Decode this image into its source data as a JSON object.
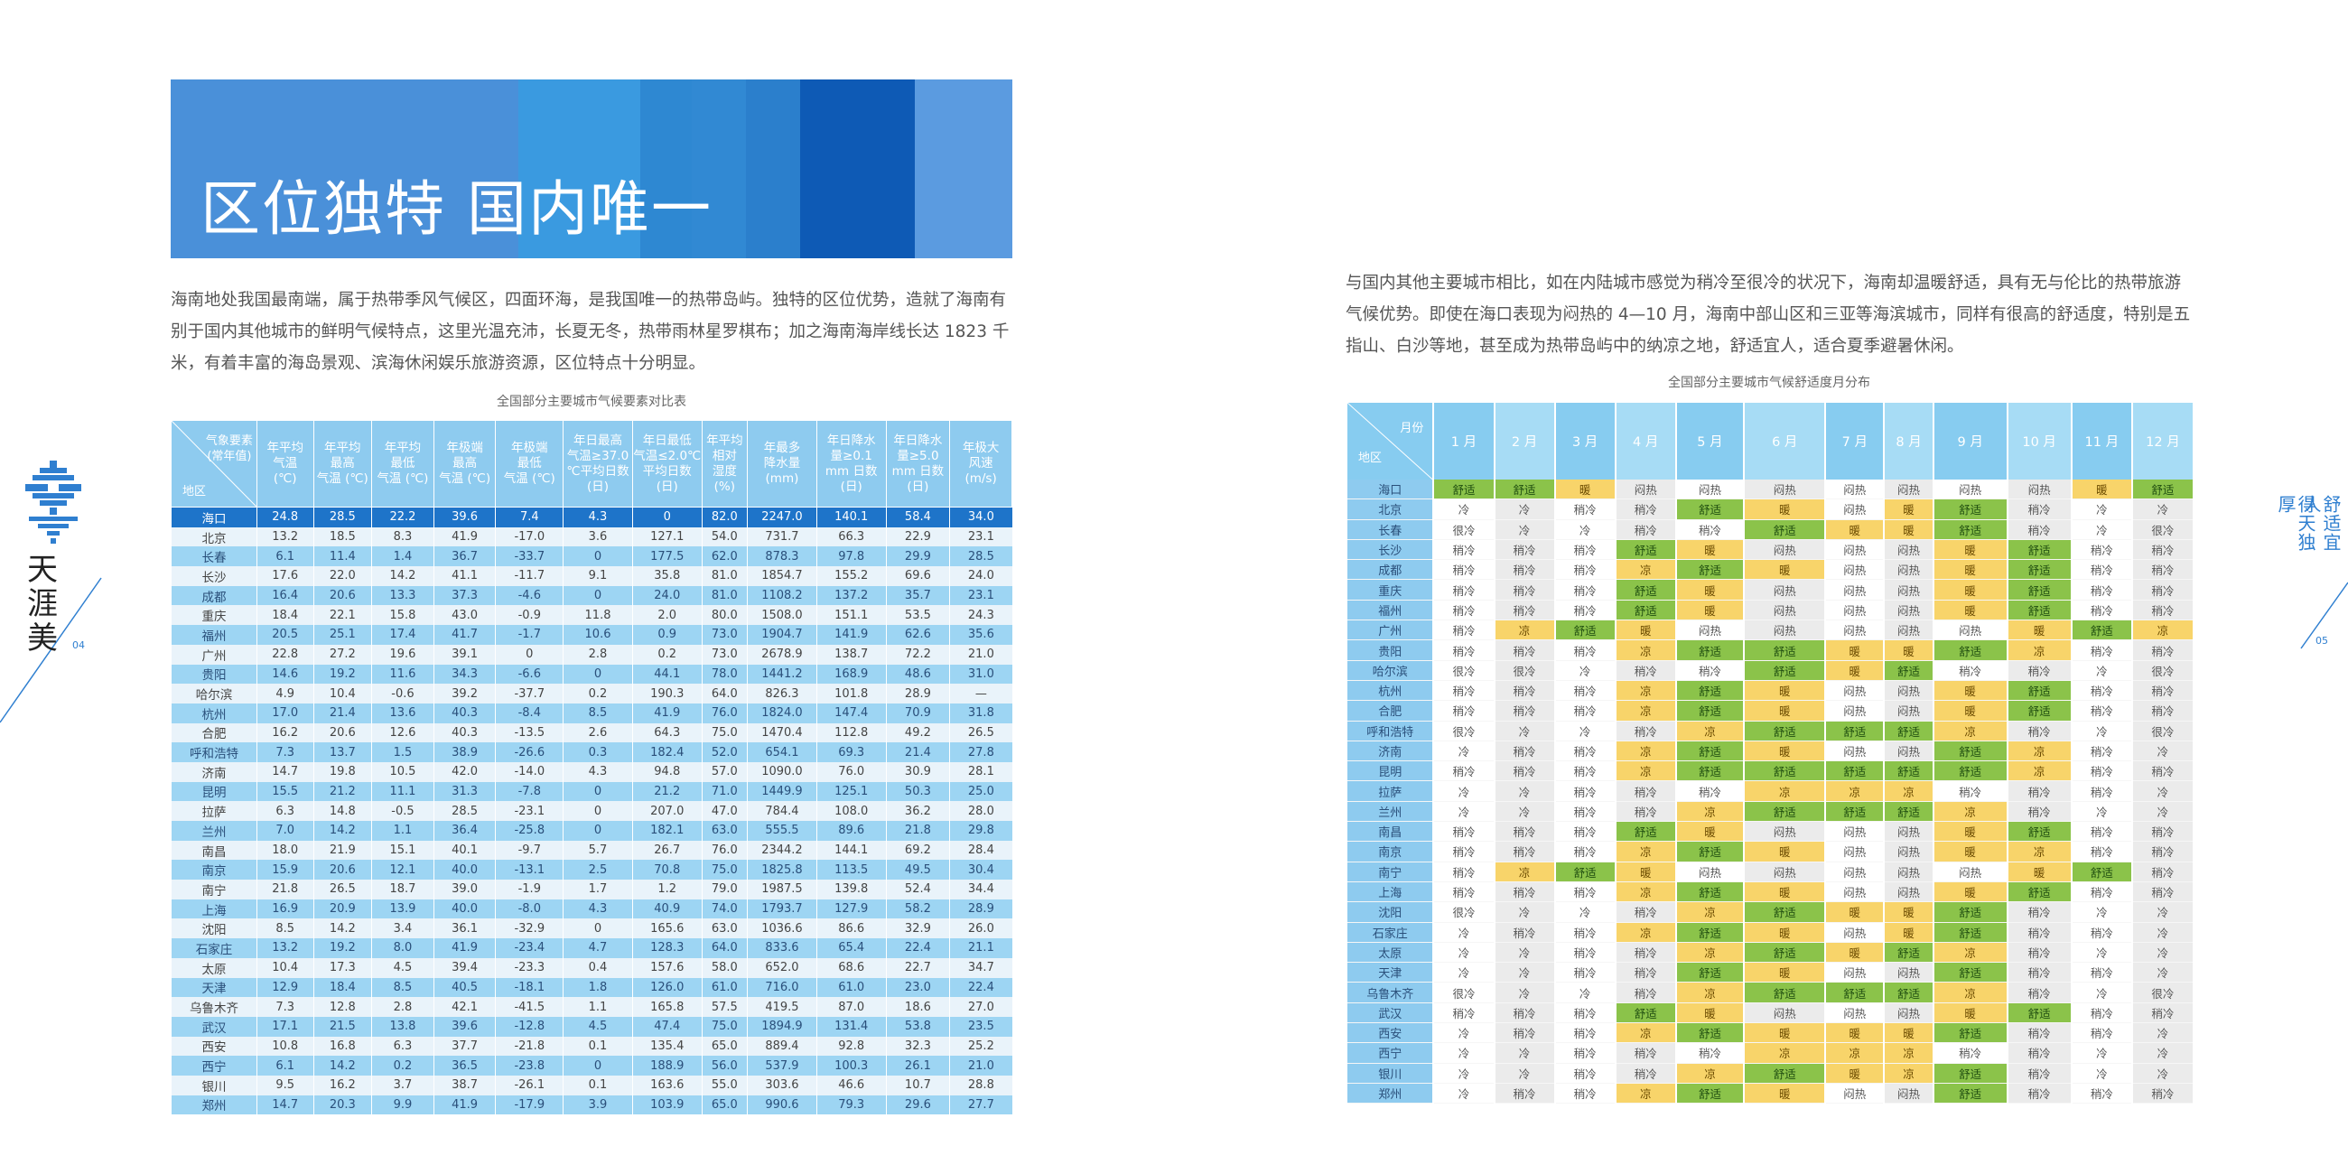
{
  "banner": {
    "title": "区位独特  国内唯一",
    "colors": [
      "#4a90d9",
      "#3f8ad6",
      "#3a9ae0",
      "#2e88d2",
      "#2b7fcc",
      "#0e5ab5",
      "#5b9be0"
    ]
  },
  "left_paragraph": "海南地处我国最南端，属于热带季风气候区，四面环海，是我国唯一的热带岛屿。独特的区位优势，造就了海南有别于国内其他城市的鲜明气候特点，这里光温充沛，长夏无冬，热带雨林星罗棋布；加之海南海岸线长达 1823 千米，有着丰富的海岛景观、滨海休闲娱乐旅游资源，区位特点十分明显。",
  "right_paragraph": "与国内其他主要城市相比，如在内陆城市感觉为稍冷至很冷的状况下，海南却温暖舒适，具有无与伦比的热带旅游气候优势。即使在海口表现为闷热的 4—10 月，海南中部山区和三亚等海滨城市，同样有很高的舒适度，特别是五指山、白沙等地，甚至成为热带岛屿中的纳凉之地，舒适宜人，适合夏季避暑休闲。",
  "table1": {
    "caption": "全国部分主要城市气候要素对比表",
    "corner_top": "气象要素\n(常年值)",
    "corner_bottom": "地区",
    "headers": [
      "年平均\n气温\n(℃)",
      "年平均\n最高\n气温 (℃)",
      "年平均\n最低\n气温 (℃)",
      "年极端\n最高\n气温 (℃)",
      "年极端\n最低\n气温 (℃)",
      "年日最高\n气温≥37.0\n℃平均日数\n(日)",
      "年日最低\n气温≤2.0℃\n平均日数\n(日)",
      "年平均\n相对\n湿度\n(%)",
      "年最多\n降水量\n(mm)",
      "年日降水\n量≥0.1\nmm 日数\n(日)",
      "年日降水\n量≥5.0\nmm 日数\n(日)",
      "年极大\n风速\n(m/s)"
    ],
    "rows": [
      [
        "海口",
        "24.8",
        "28.5",
        "22.2",
        "39.6",
        "7.4",
        "4.3",
        "0",
        "82.0",
        "2247.0",
        "140.1",
        "58.4",
        "34.0"
      ],
      [
        "北京",
        "13.2",
        "18.5",
        "8.3",
        "41.9",
        "-17.0",
        "3.6",
        "127.1",
        "54.0",
        "731.7",
        "66.3",
        "22.9",
        "23.1"
      ],
      [
        "长春",
        "6.1",
        "11.4",
        "1.4",
        "36.7",
        "-33.7",
        "0",
        "177.5",
        "62.0",
        "878.3",
        "97.8",
        "29.9",
        "28.5"
      ],
      [
        "长沙",
        "17.6",
        "22.0",
        "14.2",
        "41.1",
        "-11.7",
        "9.1",
        "35.8",
        "81.0",
        "1854.7",
        "155.2",
        "69.6",
        "24.0"
      ],
      [
        "成都",
        "16.4",
        "20.6",
        "13.3",
        "37.3",
        "-4.6",
        "0",
        "24.0",
        "81.0",
        "1108.2",
        "137.2",
        "35.7",
        "23.1"
      ],
      [
        "重庆",
        "18.4",
        "22.1",
        "15.8",
        "43.0",
        "-0.9",
        "11.8",
        "2.0",
        "80.0",
        "1508.0",
        "151.1",
        "53.5",
        "24.3"
      ],
      [
        "福州",
        "20.5",
        "25.1",
        "17.4",
        "41.7",
        "-1.7",
        "10.6",
        "0.9",
        "73.0",
        "1904.7",
        "141.9",
        "62.6",
        "35.6"
      ],
      [
        "广州",
        "22.8",
        "27.2",
        "19.6",
        "39.1",
        "0",
        "2.8",
        "0.2",
        "73.0",
        "2678.9",
        "138.7",
        "72.2",
        "21.0"
      ],
      [
        "贵阳",
        "14.6",
        "19.2",
        "11.6",
        "34.3",
        "-6.6",
        "0",
        "44.1",
        "78.0",
        "1441.2",
        "168.9",
        "48.6",
        "31.0"
      ],
      [
        "哈尔滨",
        "4.9",
        "10.4",
        "-0.6",
        "39.2",
        "-37.7",
        "0.2",
        "190.3",
        "64.0",
        "826.3",
        "101.8",
        "28.9",
        "—"
      ],
      [
        "杭州",
        "17.0",
        "21.4",
        "13.6",
        "40.3",
        "-8.4",
        "8.5",
        "41.9",
        "76.0",
        "1824.0",
        "147.4",
        "70.9",
        "31.8"
      ],
      [
        "合肥",
        "16.2",
        "20.6",
        "12.6",
        "40.3",
        "-13.5",
        "2.6",
        "64.3",
        "75.0",
        "1470.4",
        "112.8",
        "49.2",
        "26.5"
      ],
      [
        "呼和浩特",
        "7.3",
        "13.7",
        "1.5",
        "38.9",
        "-26.6",
        "0.3",
        "182.4",
        "52.0",
        "654.1",
        "69.3",
        "21.4",
        "27.8"
      ],
      [
        "济南",
        "14.7",
        "19.8",
        "10.5",
        "42.0",
        "-14.0",
        "4.3",
        "94.8",
        "57.0",
        "1090.0",
        "76.0",
        "30.9",
        "28.1"
      ],
      [
        "昆明",
        "15.5",
        "21.2",
        "11.1",
        "31.3",
        "-7.8",
        "0",
        "21.2",
        "71.0",
        "1449.9",
        "125.1",
        "50.3",
        "25.0"
      ],
      [
        "拉萨",
        "6.3",
        "14.8",
        "-0.5",
        "28.5",
        "-23.1",
        "0",
        "207.0",
        "47.0",
        "784.4",
        "108.0",
        "36.2",
        "28.0"
      ],
      [
        "兰州",
        "7.0",
        "14.2",
        "1.1",
        "36.4",
        "-25.8",
        "0",
        "182.1",
        "63.0",
        "555.5",
        "89.6",
        "21.8",
        "29.8"
      ],
      [
        "南昌",
        "18.0",
        "21.9",
        "15.1",
        "40.1",
        "-9.7",
        "5.7",
        "26.7",
        "76.0",
        "2344.2",
        "144.1",
        "69.2",
        "28.4"
      ],
      [
        "南京",
        "15.9",
        "20.6",
        "12.1",
        "40.0",
        "-13.1",
        "2.5",
        "70.8",
        "75.0",
        "1825.8",
        "113.5",
        "49.5",
        "30.4"
      ],
      [
        "南宁",
        "21.8",
        "26.5",
        "18.7",
        "39.0",
        "-1.9",
        "1.7",
        "1.2",
        "79.0",
        "1987.5",
        "139.8",
        "52.4",
        "34.4"
      ],
      [
        "上海",
        "16.9",
        "20.9",
        "13.9",
        "40.0",
        "-8.0",
        "4.3",
        "40.9",
        "74.0",
        "1793.7",
        "127.9",
        "58.2",
        "28.9"
      ],
      [
        "沈阳",
        "8.5",
        "14.2",
        "3.4",
        "36.1",
        "-32.9",
        "0",
        "165.6",
        "63.0",
        "1036.6",
        "86.6",
        "32.9",
        "26.0"
      ],
      [
        "石家庄",
        "13.2",
        "19.2",
        "8.0",
        "41.9",
        "-23.4",
        "4.7",
        "128.3",
        "64.0",
        "833.6",
        "65.4",
        "22.4",
        "21.1"
      ],
      [
        "太原",
        "10.4",
        "17.3",
        "4.5",
        "39.4",
        "-23.3",
        "0.4",
        "157.6",
        "58.0",
        "652.0",
        "68.6",
        "22.7",
        "34.7"
      ],
      [
        "天津",
        "12.9",
        "18.4",
        "8.5",
        "40.5",
        "-18.1",
        "1.8",
        "126.0",
        "61.0",
        "716.0",
        "61.0",
        "23.0",
        "22.4"
      ],
      [
        "乌鲁木齐",
        "7.3",
        "12.8",
        "2.8",
        "42.1",
        "-41.5",
        "1.1",
        "165.8",
        "57.5",
        "419.5",
        "87.0",
        "18.6",
        "27.0"
      ],
      [
        "武汉",
        "17.1",
        "21.5",
        "13.8",
        "39.6",
        "-12.8",
        "4.5",
        "47.4",
        "75.0",
        "1894.9",
        "131.4",
        "53.8",
        "23.5"
      ],
      [
        "西安",
        "10.8",
        "16.8",
        "6.3",
        "37.7",
        "-21.8",
        "0.1",
        "135.4",
        "65.0",
        "889.4",
        "92.8",
        "32.3",
        "25.2"
      ],
      [
        "西宁",
        "6.1",
        "14.2",
        "0.2",
        "36.5",
        "-23.8",
        "0",
        "188.9",
        "56.0",
        "537.9",
        "100.3",
        "26.1",
        "21.0"
      ],
      [
        "银川",
        "9.5",
        "16.2",
        "3.7",
        "38.7",
        "-26.1",
        "0.1",
        "163.6",
        "55.0",
        "303.6",
        "46.6",
        "10.7",
        "28.8"
      ],
      [
        "郑州",
        "14.7",
        "20.3",
        "9.9",
        "41.9",
        "-17.9",
        "3.9",
        "103.9",
        "65.0",
        "990.6",
        "79.3",
        "29.6",
        "27.7"
      ]
    ]
  },
  "table2": {
    "caption": "全国部分主要城市气候舒适度月分布",
    "corner_top": "月份",
    "corner_bottom": "地区",
    "months": [
      "1 月",
      "2 月",
      "3 月",
      "4 月",
      "5 月",
      "6 月",
      "7 月",
      "8 月",
      "9 月",
      "10 月",
      "11 月",
      "12 月"
    ],
    "rows": [
      [
        "海口",
        "舒适",
        "舒适",
        "暖",
        "闷热",
        "闷热",
        "闷热",
        "闷热",
        "闷热",
        "闷热",
        "闷热",
        "暖",
        "舒适"
      ],
      [
        "北京",
        "冷",
        "冷",
        "稍冷",
        "稍冷",
        "舒适",
        "暖",
        "闷热",
        "暖",
        "舒适",
        "稍冷",
        "冷",
        "冷"
      ],
      [
        "长春",
        "很冷",
        "冷",
        "冷",
        "稍冷",
        "稍冷",
        "舒适",
        "暖",
        "暖",
        "舒适",
        "稍冷",
        "冷",
        "很冷"
      ],
      [
        "长沙",
        "稍冷",
        "稍冷",
        "稍冷",
        "舒适",
        "暖",
        "闷热",
        "闷热",
        "闷热",
        "暖",
        "舒适",
        "稍冷",
        "稍冷"
      ],
      [
        "成都",
        "稍冷",
        "稍冷",
        "稍冷",
        "凉",
        "舒适",
        "暖",
        "闷热",
        "闷热",
        "暖",
        "舒适",
        "稍冷",
        "稍冷"
      ],
      [
        "重庆",
        "稍冷",
        "稍冷",
        "稍冷",
        "舒适",
        "暖",
        "闷热",
        "闷热",
        "闷热",
        "暖",
        "舒适",
        "稍冷",
        "稍冷"
      ],
      [
        "福州",
        "稍冷",
        "稍冷",
        "稍冷",
        "舒适",
        "暖",
        "闷热",
        "闷热",
        "闷热",
        "暖",
        "舒适",
        "稍冷",
        "稍冷"
      ],
      [
        "广州",
        "稍冷",
        "凉",
        "舒适",
        "暖",
        "闷热",
        "闷热",
        "闷热",
        "闷热",
        "闷热",
        "暖",
        "舒适",
        "凉"
      ],
      [
        "贵阳",
        "稍冷",
        "稍冷",
        "稍冷",
        "凉",
        "舒适",
        "舒适",
        "暖",
        "暖",
        "舒适",
        "凉",
        "稍冷",
        "稍冷"
      ],
      [
        "哈尔滨",
        "很冷",
        "很冷",
        "冷",
        "稍冷",
        "稍冷",
        "舒适",
        "暖",
        "舒适",
        "稍冷",
        "稍冷",
        "冷",
        "很冷"
      ],
      [
        "杭州",
        "稍冷",
        "稍冷",
        "稍冷",
        "凉",
        "舒适",
        "暖",
        "闷热",
        "闷热",
        "暖",
        "舒适",
        "稍冷",
        "稍冷"
      ],
      [
        "合肥",
        "稍冷",
        "稍冷",
        "稍冷",
        "凉",
        "舒适",
        "暖",
        "闷热",
        "闷热",
        "暖",
        "舒适",
        "稍冷",
        "稍冷"
      ],
      [
        "呼和浩特",
        "很冷",
        "冷",
        "冷",
        "稍冷",
        "凉",
        "舒适",
        "舒适",
        "舒适",
        "凉",
        "稍冷",
        "冷",
        "很冷"
      ],
      [
        "济南",
        "冷",
        "稍冷",
        "稍冷",
        "凉",
        "舒适",
        "暖",
        "闷热",
        "闷热",
        "舒适",
        "凉",
        "稍冷",
        "冷"
      ],
      [
        "昆明",
        "稍冷",
        "稍冷",
        "稍冷",
        "凉",
        "舒适",
        "舒适",
        "舒适",
        "舒适",
        "舒适",
        "凉",
        "稍冷",
        "稍冷"
      ],
      [
        "拉萨",
        "冷",
        "冷",
        "稍冷",
        "稍冷",
        "稍冷",
        "凉",
        "凉",
        "凉",
        "稍冷",
        "稍冷",
        "稍冷",
        "冷"
      ],
      [
        "兰州",
        "冷",
        "冷",
        "稍冷",
        "稍冷",
        "凉",
        "舒适",
        "舒适",
        "舒适",
        "凉",
        "稍冷",
        "冷",
        "冷"
      ],
      [
        "南昌",
        "稍冷",
        "稍冷",
        "稍冷",
        "舒适",
        "暖",
        "闷热",
        "闷热",
        "闷热",
        "暖",
        "舒适",
        "稍冷",
        "稍冷"
      ],
      [
        "南京",
        "稍冷",
        "稍冷",
        "稍冷",
        "凉",
        "舒适",
        "暖",
        "闷热",
        "闷热",
        "暖",
        "凉",
        "稍冷",
        "稍冷"
      ],
      [
        "南宁",
        "稍冷",
        "凉",
        "舒适",
        "暖",
        "闷热",
        "闷热",
        "闷热",
        "闷热",
        "闷热",
        "暖",
        "舒适",
        "稍冷"
      ],
      [
        "上海",
        "稍冷",
        "稍冷",
        "稍冷",
        "凉",
        "舒适",
        "暖",
        "闷热",
        "闷热",
        "暖",
        "舒适",
        "稍冷",
        "稍冷"
      ],
      [
        "沈阳",
        "很冷",
        "冷",
        "冷",
        "稍冷",
        "凉",
        "舒适",
        "暖",
        "暖",
        "舒适",
        "稍冷",
        "冷",
        "冷"
      ],
      [
        "石家庄",
        "冷",
        "稍冷",
        "稍冷",
        "凉",
        "舒适",
        "暖",
        "闷热",
        "暖",
        "舒适",
        "稍冷",
        "稍冷",
        "冷"
      ],
      [
        "太原",
        "冷",
        "冷",
        "稍冷",
        "稍冷",
        "凉",
        "舒适",
        "暖",
        "舒适",
        "凉",
        "稍冷",
        "冷",
        "冷"
      ],
      [
        "天津",
        "冷",
        "冷",
        "稍冷",
        "稍冷",
        "舒适",
        "暖",
        "闷热",
        "闷热",
        "舒适",
        "稍冷",
        "稍冷",
        "冷"
      ],
      [
        "乌鲁木齐",
        "很冷",
        "冷",
        "冷",
        "稍冷",
        "凉",
        "舒适",
        "舒适",
        "舒适",
        "凉",
        "稍冷",
        "冷",
        "很冷"
      ],
      [
        "武汉",
        "稍冷",
        "稍冷",
        "稍冷",
        "舒适",
        "暖",
        "闷热",
        "闷热",
        "闷热",
        "暖",
        "舒适",
        "稍冷",
        "稍冷"
      ],
      [
        "西安",
        "冷",
        "稍冷",
        "稍冷",
        "凉",
        "舒适",
        "暖",
        "暖",
        "暖",
        "舒适",
        "稍冷",
        "稍冷",
        "冷"
      ],
      [
        "西宁",
        "冷",
        "冷",
        "稍冷",
        "稍冷",
        "稍冷",
        "凉",
        "凉",
        "凉",
        "稍冷",
        "稍冷",
        "冷",
        "冷"
      ],
      [
        "银川",
        "冷",
        "冷",
        "稍冷",
        "稍冷",
        "凉",
        "舒适",
        "暖",
        "凉",
        "舒适",
        "稍冷",
        "冷",
        "冷"
      ],
      [
        "郑州",
        "冷",
        "稍冷",
        "稍冷",
        "凉",
        "舒适",
        "暖",
        "闷热",
        "闷热",
        "舒适",
        "稍冷",
        "稍冷",
        "稍冷"
      ]
    ]
  },
  "logo_text": "天\n涯\n美",
  "page_left": "04",
  "page_right": "05",
  "slogan": [
    "舒适宜人",
    "得天独厚"
  ],
  "colors": {
    "comfort": "#8bc34a",
    "warm_cool": "#f8d46a",
    "header_blue": "#8ecbef",
    "haikou_row": "#1e74c9",
    "accent": "#2f7fd0"
  }
}
